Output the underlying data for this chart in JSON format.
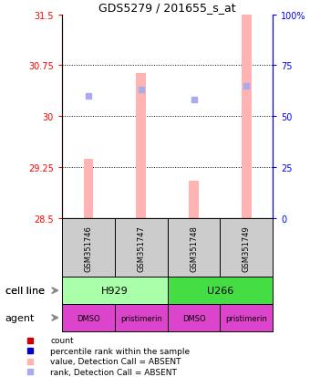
{
  "title": "GDS5279 / 201655_s_at",
  "samples": [
    "GSM351746",
    "GSM351747",
    "GSM351748",
    "GSM351749"
  ],
  "bar_values": [
    29.38,
    30.63,
    29.05,
    31.5
  ],
  "rank_values": [
    60,
    63,
    58,
    65
  ],
  "bar_color": "#ffb3b3",
  "rank_color": "#aaaaee",
  "ylim_left": [
    28.5,
    31.5
  ],
  "ylim_right": [
    0,
    100
  ],
  "yticks_left": [
    28.5,
    29.25,
    30.0,
    30.75,
    31.5
  ],
  "ytick_labels_left": [
    "28.5",
    "29.25",
    "30",
    "30.75",
    "31.5"
  ],
  "yticks_right": [
    0,
    25,
    50,
    75,
    100
  ],
  "ytick_labels_right": [
    "0",
    "25",
    "50",
    "75",
    "100%"
  ],
  "hline_values": [
    29.25,
    30.0,
    30.75
  ],
  "cell_line_groups": [
    {
      "label": "H929",
      "start": 0,
      "end": 2,
      "color": "#aaffaa"
    },
    {
      "label": "U266",
      "start": 2,
      "end": 4,
      "color": "#44dd44"
    }
  ],
  "agent_labels": [
    "DMSO",
    "pristimerin",
    "DMSO",
    "pristimerin"
  ],
  "agent_color": "#dd44cc",
  "sample_box_color": "#cccccc",
  "legend_items": [
    {
      "label": "count",
      "color": "#cc0000"
    },
    {
      "label": "percentile rank within the sample",
      "color": "#0000cc"
    },
    {
      "label": "value, Detection Call = ABSENT",
      "color": "#ffb3b3"
    },
    {
      "label": "rank, Detection Call = ABSENT",
      "color": "#aaaaee"
    }
  ]
}
